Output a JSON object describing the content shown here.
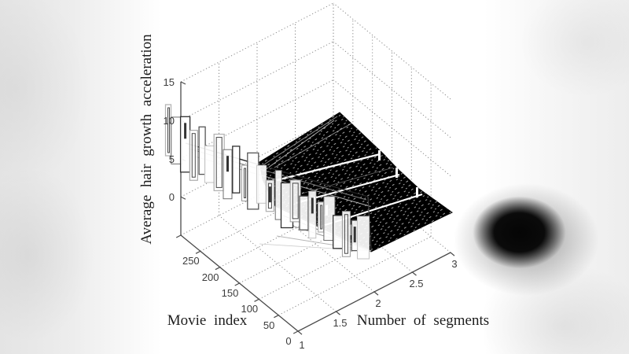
{
  "colors": {
    "background": "#ffffff",
    "surface": "#000000",
    "grid": "#8a8a8a",
    "axis": "#4a4a4a",
    "tick_label": "#3c3c3c",
    "axis_label": "#1d1d1d"
  },
  "chart_data": {
    "type": "surface-3d-mesh",
    "title": "",
    "xlabel": "Number of segments",
    "ylabel": "Movie index",
    "zlabel": "Average hair growth acceleration",
    "x_ticks": [
      "1",
      "1.5",
      "2",
      "2.5",
      "3"
    ],
    "y_ticks": [
      "0",
      "50",
      "100",
      "150",
      "200",
      "250"
    ],
    "z_ticks": [
      "0",
      "5",
      "10",
      "15"
    ],
    "x_range": [
      1,
      3
    ],
    "y_range": [
      0,
      300
    ],
    "z_range": [
      -5,
      15
    ],
    "grid": "dotted",
    "legend": "none",
    "surface_summary": "Waterfall-style mesh: noisy outlined spikes (about 0 to 7) along the segments=1 front row across all movie indices; for 1.5 to 3 segments the mesh forms dense black planar ramps that rise with movie index and step down toward higher segment counts, from about 7 down to about -3.",
    "front_row_spike_heights": [
      6.8,
      5.4,
      6.2,
      4.6,
      5.9,
      3.4,
      6.1,
      4.2,
      5.5,
      3.0,
      5.8,
      4.4,
      2.6,
      5.0,
      3.6,
      4.8,
      2.8,
      4.3,
      3.2,
      4.9,
      2.4,
      3.8,
      3.0,
      4.4
    ]
  }
}
